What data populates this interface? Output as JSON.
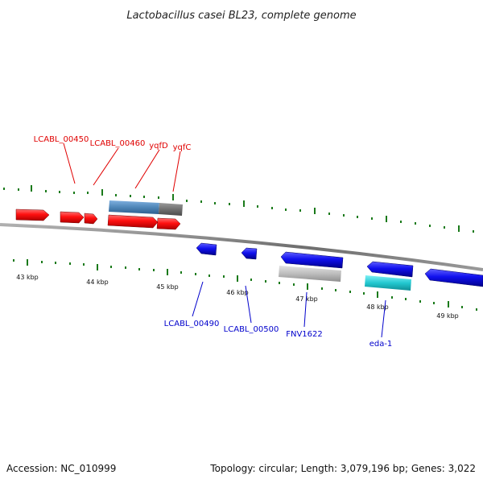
{
  "title": "Lactobacillus casei BL23, complete genome",
  "footer": {
    "accession": "Accession: NC_010999",
    "topology": "Topology: circular; Length: 3,079,196 bp; Genes: 3,022"
  },
  "colors": {
    "forward_gene": "#ff1010",
    "reverse_gene": "#1010ee",
    "backbone": "#808080",
    "tick": "#1a7a1a",
    "label_red": "#e00000",
    "label_blue": "#0000cc",
    "feature_steelblue": "#4f86b8",
    "feature_grey": "#707070",
    "feature_lightgrey": "#b8b8b8",
    "feature_cyan": "#22c8d0"
  },
  "axis_labels": [
    "43 kbp",
    "44 kbp",
    "45 kbp",
    "46 kbp",
    "47 kbp",
    "48 kbp",
    "49 kbp"
  ],
  "forward_genes": [
    {
      "name": "LCABL_00450"
    },
    {
      "name": "LCABL_00460"
    },
    {
      "name": "yqfD"
    },
    {
      "name": "yqfC"
    }
  ],
  "reverse_genes": [
    {
      "name": "LCABL_00490"
    },
    {
      "name": "LCABL_00500"
    },
    {
      "name": "FNV1622"
    },
    {
      "name": "eda-1"
    }
  ]
}
